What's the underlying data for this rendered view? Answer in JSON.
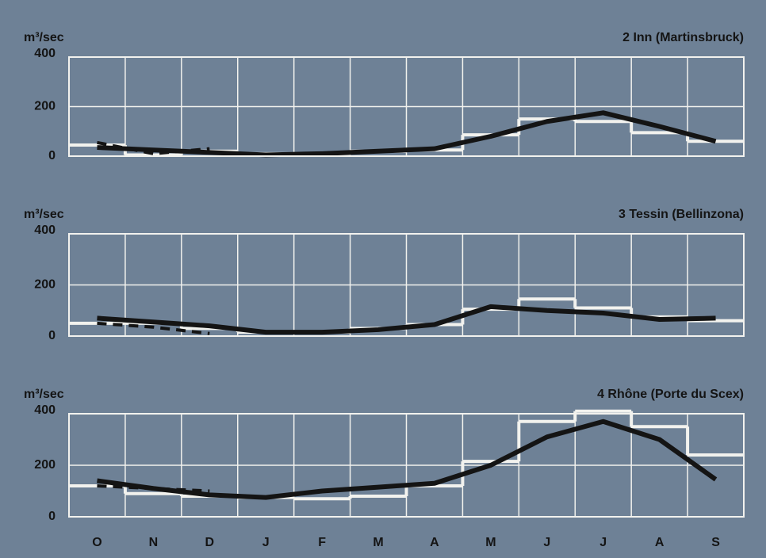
{
  "chart_data": [
    {
      "type": "step-line",
      "title": "2  Inn (Martinsbruck)",
      "y_label": "m³/sec",
      "ylim": [
        0,
        400
      ],
      "yticks": [
        0,
        200,
        400
      ],
      "grid": true,
      "series": [
        {
          "color": "#f2f2ee",
          "style": "step",
          "values": [
            45,
            5,
            20,
            10,
            10,
            20,
            25,
            86,
            150,
            140,
            95,
            60
          ]
        },
        {
          "color": "#141414",
          "style": "line",
          "values": [
            35,
            25,
            15,
            5,
            10,
            20,
            30,
            80,
            140,
            175,
            120,
            60
          ]
        },
        {
          "color": "#141414",
          "style": "dashed",
          "values": [
            55,
            10,
            30,
            null,
            null,
            null,
            null,
            null,
            null,
            null,
            null,
            null
          ]
        }
      ]
    },
    {
      "type": "step-line",
      "title": "3  Tessin (Bellinzona)",
      "y_label": "m³/sec",
      "ylim": [
        0,
        400
      ],
      "yticks": [
        0,
        200,
        400
      ],
      "grid": true,
      "series": [
        {
          "color": "#f2f2ee",
          "style": "step",
          "values": [
            50,
            50,
            30,
            15,
            15,
            30,
            45,
            105,
            145,
            110,
            75,
            60
          ]
        },
        {
          "color": "#141414",
          "style": "line",
          "values": [
            70,
            55,
            40,
            15,
            15,
            25,
            45,
            115,
            100,
            90,
            65,
            70
          ]
        },
        {
          "color": "#141414",
          "style": "dashed",
          "values": [
            50,
            35,
            10,
            null,
            null,
            null,
            null,
            null,
            null,
            null,
            null,
            null
          ]
        }
      ]
    },
    {
      "type": "step-line",
      "title": "4  Rhône (Porte du Scex)",
      "y_label": "m³/sec",
      "ylim": [
        0,
        400
      ],
      "yticks": [
        0,
        200,
        400
      ],
      "grid": true,
      "categories": [
        "O",
        "N",
        "D",
        "J",
        "F",
        "M",
        "A",
        "M",
        "J",
        "J",
        "A",
        "S"
      ],
      "series": [
        {
          "color": "#f2f2ee",
          "style": "step",
          "values": [
            120,
            90,
            80,
            75,
            70,
            80,
            120,
            215,
            370,
            410,
            350,
            240
          ]
        },
        {
          "color": "#141414",
          "style": "line",
          "values": [
            140,
            110,
            85,
            75,
            100,
            115,
            130,
            200,
            310,
            370,
            300,
            145
          ]
        },
        {
          "color": "#141414",
          "style": "dashed",
          "values": [
            120,
            110,
            100,
            null,
            null,
            null,
            null,
            null,
            null,
            null,
            null,
            null
          ]
        }
      ]
    }
  ]
}
